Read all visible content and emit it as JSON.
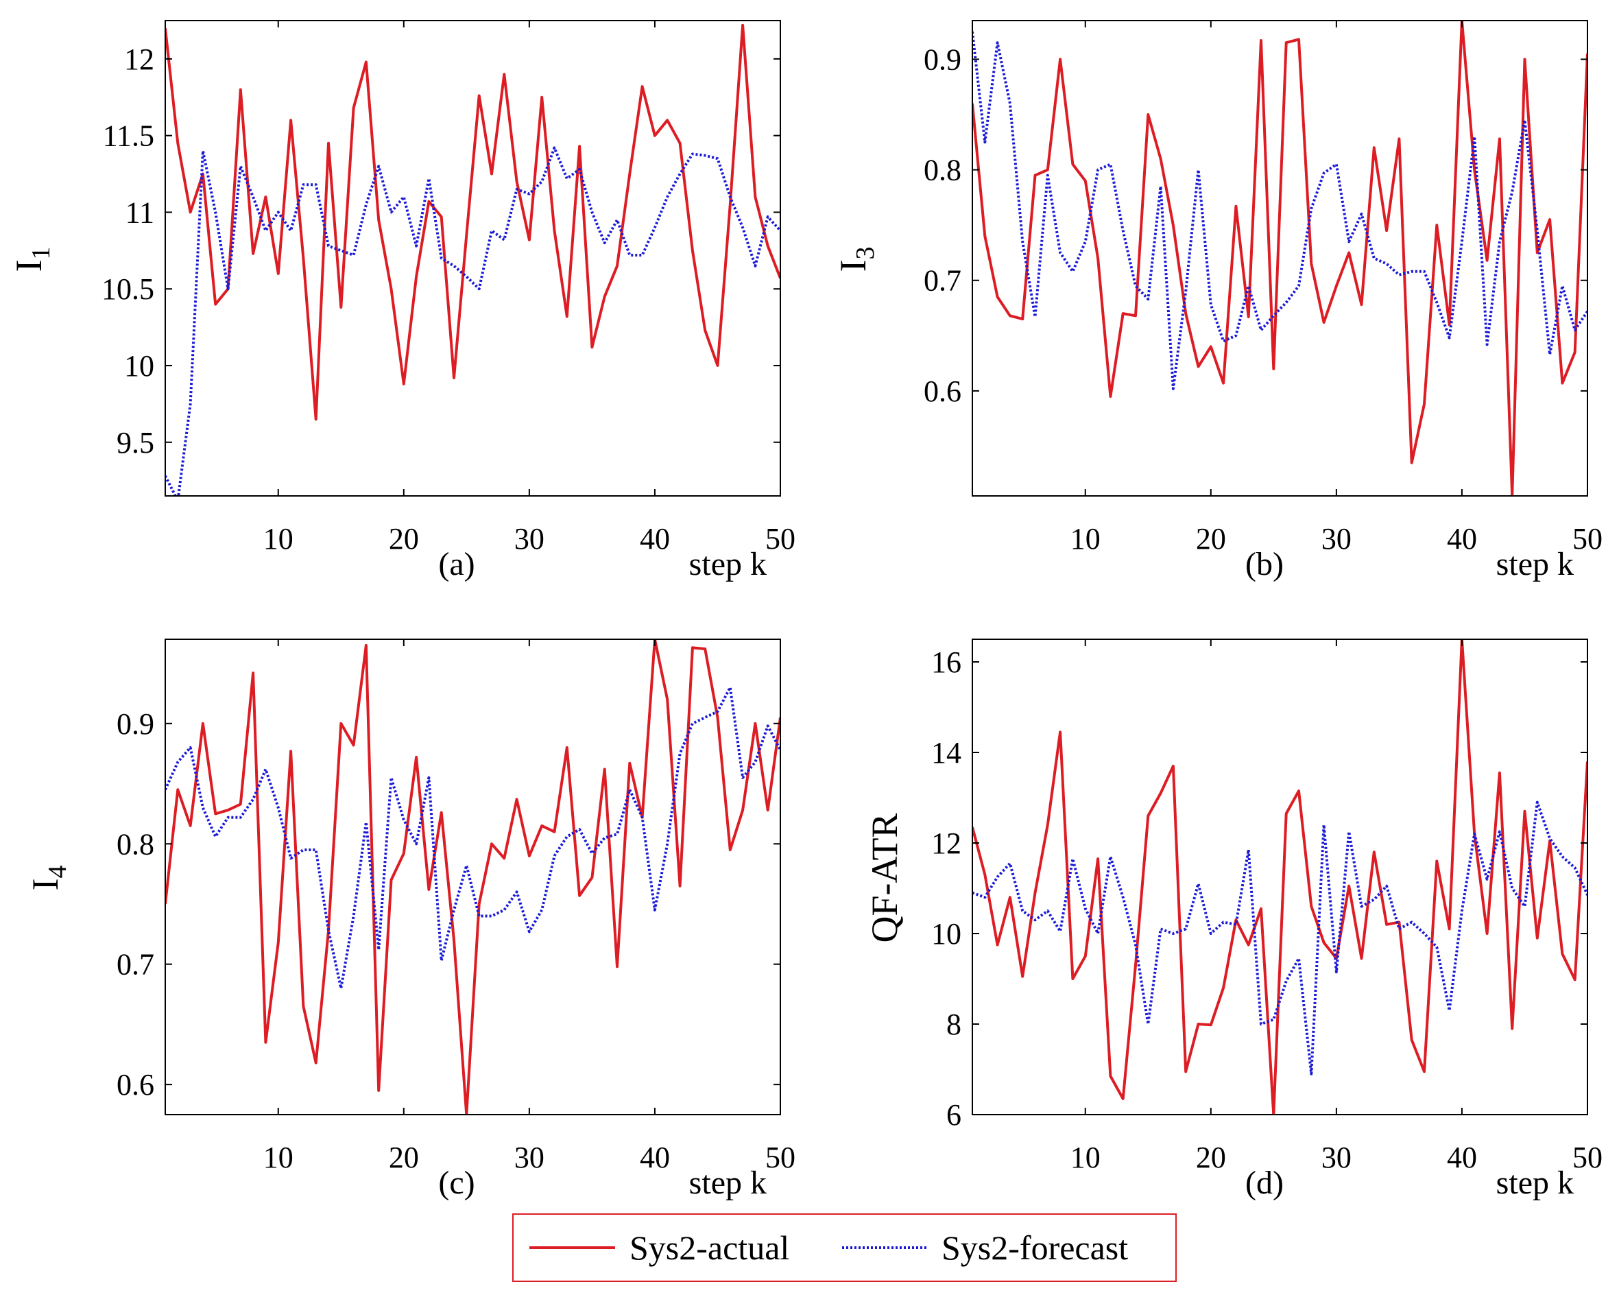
{
  "colors": {
    "actual": "#dd1d24",
    "forecast": "#1a1ad6",
    "axis": "#000000"
  },
  "chart_data": [
    {
      "type": "line",
      "id": "a",
      "caption": "(a)",
      "xlabel": "step k",
      "ylabel": "I",
      "ylabel_sub": "1",
      "xlim": [
        1,
        50
      ],
      "ylim": [
        9.15,
        12.25
      ],
      "xticks": [
        10,
        20,
        30,
        40,
        50
      ],
      "yticks": [
        9.5,
        10,
        10.5,
        11,
        11.5,
        12
      ],
      "ytick_labels": [
        "9.5",
        "10",
        "10.5",
        "11",
        "11.5",
        "12"
      ],
      "x": [
        1,
        2,
        3,
        4,
        5,
        6,
        7,
        8,
        9,
        10,
        11,
        12,
        13,
        14,
        15,
        16,
        17,
        18,
        19,
        20,
        21,
        22,
        23,
        24,
        25,
        26,
        27,
        28,
        29,
        30,
        31,
        32,
        33,
        34,
        35,
        36,
        37,
        38,
        39,
        40,
        41,
        42,
        43,
        44,
        45,
        46,
        47,
        48,
        49,
        50
      ],
      "series": [
        {
          "name": "Sys2-actual",
          "values": [
            12.2,
            11.45,
            11.0,
            11.25,
            10.4,
            10.5,
            11.8,
            10.73,
            11.1,
            10.6,
            11.6,
            10.7,
            9.65,
            11.45,
            10.38,
            11.68,
            11.98,
            10.95,
            10.5,
            9.88,
            10.58,
            11.07,
            10.97,
            9.92,
            10.85,
            11.76,
            11.25,
            11.9,
            11.2,
            10.82,
            11.75,
            10.88,
            10.32,
            11.43,
            10.12,
            10.45,
            10.65,
            11.25,
            11.82,
            11.5,
            11.6,
            11.45,
            10.75,
            10.23,
            10.0,
            11.05,
            12.22,
            11.1,
            10.78,
            10.57
          ]
        },
        {
          "name": "Sys2-forecast",
          "values": [
            9.28,
            9.12,
            9.75,
            11.4,
            11.0,
            10.5,
            11.3,
            11.1,
            10.88,
            11.0,
            10.88,
            11.18,
            11.18,
            10.78,
            10.75,
            10.72,
            11.05,
            11.3,
            11.0,
            11.1,
            10.78,
            11.22,
            10.7,
            10.65,
            10.58,
            10.5,
            10.88,
            10.82,
            11.15,
            11.12,
            11.2,
            11.42,
            11.22,
            11.28,
            11.0,
            10.8,
            10.95,
            10.72,
            10.72,
            10.9,
            11.1,
            11.25,
            11.38,
            11.37,
            11.35,
            11.1,
            10.9,
            10.65,
            10.97,
            10.88
          ]
        }
      ]
    },
    {
      "type": "line",
      "id": "b",
      "caption": "(b)",
      "xlabel": "step k",
      "ylabel": "I",
      "ylabel_sub": "3",
      "xlim": [
        1,
        50
      ],
      "ylim": [
        0.505,
        0.935
      ],
      "xticks": [
        10,
        20,
        30,
        40,
        50
      ],
      "yticks": [
        0.6,
        0.7,
        0.8,
        0.9
      ],
      "ytick_labels": [
        "0.6",
        "0.7",
        "0.8",
        "0.9"
      ],
      "x": [
        1,
        2,
        3,
        4,
        5,
        6,
        7,
        8,
        9,
        10,
        11,
        12,
        13,
        14,
        15,
        16,
        17,
        18,
        19,
        20,
        21,
        22,
        23,
        24,
        25,
        26,
        27,
        28,
        29,
        30,
        31,
        32,
        33,
        34,
        35,
        36,
        37,
        38,
        39,
        40,
        41,
        42,
        43,
        44,
        45,
        46,
        47,
        48,
        49,
        50
      ],
      "series": [
        {
          "name": "Sys2-actual",
          "values": [
            0.86,
            0.74,
            0.685,
            0.668,
            0.665,
            0.795,
            0.8,
            0.9,
            0.805,
            0.79,
            0.72,
            0.595,
            0.67,
            0.668,
            0.85,
            0.81,
            0.75,
            0.67,
            0.622,
            0.64,
            0.607,
            0.767,
            0.667,
            0.917,
            0.62,
            0.915,
            0.918,
            0.715,
            0.662,
            0.695,
            0.725,
            0.678,
            0.82,
            0.745,
            0.828,
            0.535,
            0.588,
            0.75,
            0.66,
            0.935,
            0.8,
            0.718,
            0.828,
            0.505,
            0.9,
            0.725,
            0.755,
            0.607,
            0.635,
            0.905
          ]
        },
        {
          "name": "Sys2-forecast",
          "values": [
            0.925,
            0.825,
            0.915,
            0.86,
            0.735,
            0.667,
            0.795,
            0.725,
            0.708,
            0.735,
            0.8,
            0.805,
            0.745,
            0.695,
            0.683,
            0.785,
            0.602,
            0.69,
            0.8,
            0.678,
            0.645,
            0.65,
            0.695,
            0.655,
            0.668,
            0.68,
            0.695,
            0.765,
            0.797,
            0.805,
            0.735,
            0.76,
            0.72,
            0.715,
            0.705,
            0.708,
            0.708,
            0.68,
            0.648,
            0.735,
            0.83,
            0.642,
            0.735,
            0.78,
            0.845,
            0.745,
            0.633,
            0.695,
            0.655,
            0.672
          ]
        }
      ]
    },
    {
      "type": "line",
      "id": "c",
      "caption": "(c)",
      "xlabel": "step k",
      "ylabel": "I",
      "ylabel_sub": "4",
      "xlim": [
        1,
        50
      ],
      "ylim": [
        0.575,
        0.97
      ],
      "xticks": [
        10,
        20,
        30,
        40,
        50
      ],
      "yticks": [
        0.6,
        0.7,
        0.8,
        0.9
      ],
      "ytick_labels": [
        "0.6",
        "0.7",
        "0.8",
        "0.9"
      ],
      "x": [
        1,
        2,
        3,
        4,
        5,
        6,
        7,
        8,
        9,
        10,
        11,
        12,
        13,
        14,
        15,
        16,
        17,
        18,
        19,
        20,
        21,
        22,
        23,
        24,
        25,
        26,
        27,
        28,
        29,
        30,
        31,
        32,
        33,
        34,
        35,
        36,
        37,
        38,
        39,
        40,
        41,
        42,
        43,
        44,
        45,
        46,
        47,
        48,
        49,
        50
      ],
      "series": [
        {
          "name": "Sys2-actual",
          "values": [
            0.75,
            0.845,
            0.815,
            0.9,
            0.825,
            0.828,
            0.833,
            0.942,
            0.635,
            0.718,
            0.877,
            0.665,
            0.618,
            0.728,
            0.9,
            0.882,
            0.965,
            0.595,
            0.77,
            0.792,
            0.872,
            0.762,
            0.826,
            0.72,
            0.575,
            0.75,
            0.8,
            0.788,
            0.837,
            0.79,
            0.815,
            0.81,
            0.88,
            0.757,
            0.772,
            0.862,
            0.698,
            0.867,
            0.822,
            0.97,
            0.92,
            0.765,
            0.963,
            0.962,
            0.905,
            0.795,
            0.828,
            0.9,
            0.828,
            0.905
          ]
        },
        {
          "name": "Sys2-forecast",
          "values": [
            0.845,
            0.868,
            0.88,
            0.83,
            0.806,
            0.822,
            0.822,
            0.837,
            0.862,
            0.83,
            0.788,
            0.795,
            0.795,
            0.728,
            0.68,
            0.74,
            0.818,
            0.712,
            0.855,
            0.82,
            0.8,
            0.855,
            0.703,
            0.745,
            0.782,
            0.74,
            0.74,
            0.745,
            0.76,
            0.727,
            0.745,
            0.79,
            0.806,
            0.812,
            0.792,
            0.805,
            0.808,
            0.845,
            0.822,
            0.745,
            0.8,
            0.875,
            0.9,
            0.905,
            0.91,
            0.93,
            0.855,
            0.868,
            0.898,
            0.878
          ]
        }
      ]
    },
    {
      "type": "line",
      "id": "d",
      "caption": "(d)",
      "xlabel": "step k",
      "ylabel": "QF-ATR",
      "ylabel_sub": "",
      "xlim": [
        1,
        50
      ],
      "ylim": [
        6,
        16.5
      ],
      "xticks": [
        10,
        20,
        30,
        40,
        50
      ],
      "yticks": [
        6,
        8,
        10,
        12,
        14,
        16
      ],
      "ytick_labels": [
        "6",
        "8",
        "10",
        "12",
        "14",
        "16"
      ],
      "x": [
        1,
        2,
        3,
        4,
        5,
        6,
        7,
        8,
        9,
        10,
        11,
        12,
        13,
        14,
        15,
        16,
        17,
        18,
        19,
        20,
        21,
        22,
        23,
        24,
        25,
        26,
        27,
        28,
        29,
        30,
        31,
        32,
        33,
        34,
        35,
        36,
        37,
        38,
        39,
        40,
        41,
        42,
        43,
        44,
        45,
        46,
        47,
        48,
        49,
        50
      ],
      "series": [
        {
          "name": "Sys2-actual",
          "values": [
            12.35,
            11.3,
            9.75,
            10.8,
            9.05,
            10.9,
            12.4,
            14.45,
            9.0,
            9.5,
            11.65,
            6.85,
            6.35,
            9.3,
            12.6,
            13.1,
            13.7,
            6.95,
            8.0,
            7.98,
            8.8,
            10.3,
            9.75,
            10.55,
            6.0,
            12.65,
            13.15,
            10.6,
            9.8,
            9.45,
            11.05,
            9.45,
            11.8,
            10.2,
            10.25,
            7.65,
            6.95,
            11.6,
            10.1,
            16.5,
            12.2,
            10.0,
            13.55,
            7.9,
            12.7,
            9.9,
            12.05,
            9.55,
            8.98,
            13.8
          ]
        },
        {
          "name": "Sys2-forecast",
          "values": [
            10.9,
            10.8,
            11.25,
            11.55,
            10.5,
            10.3,
            10.5,
            10.05,
            11.65,
            10.55,
            10.0,
            11.7,
            10.8,
            9.75,
            8.0,
            10.1,
            10.0,
            10.1,
            11.1,
            10.0,
            10.25,
            10.2,
            11.85,
            8.0,
            8.1,
            8.95,
            9.45,
            6.9,
            12.4,
            9.15,
            12.25,
            10.6,
            10.75,
            11.05,
            10.1,
            10.25,
            10.0,
            9.7,
            8.3,
            10.5,
            12.2,
            11.2,
            12.25,
            11.0,
            10.6,
            12.9,
            12.1,
            11.7,
            11.45,
            10.85
          ]
        }
      ]
    }
  ],
  "legend": {
    "items": [
      {
        "label": "Sys2-actual"
      },
      {
        "label": "Sys2-forecast"
      }
    ]
  }
}
